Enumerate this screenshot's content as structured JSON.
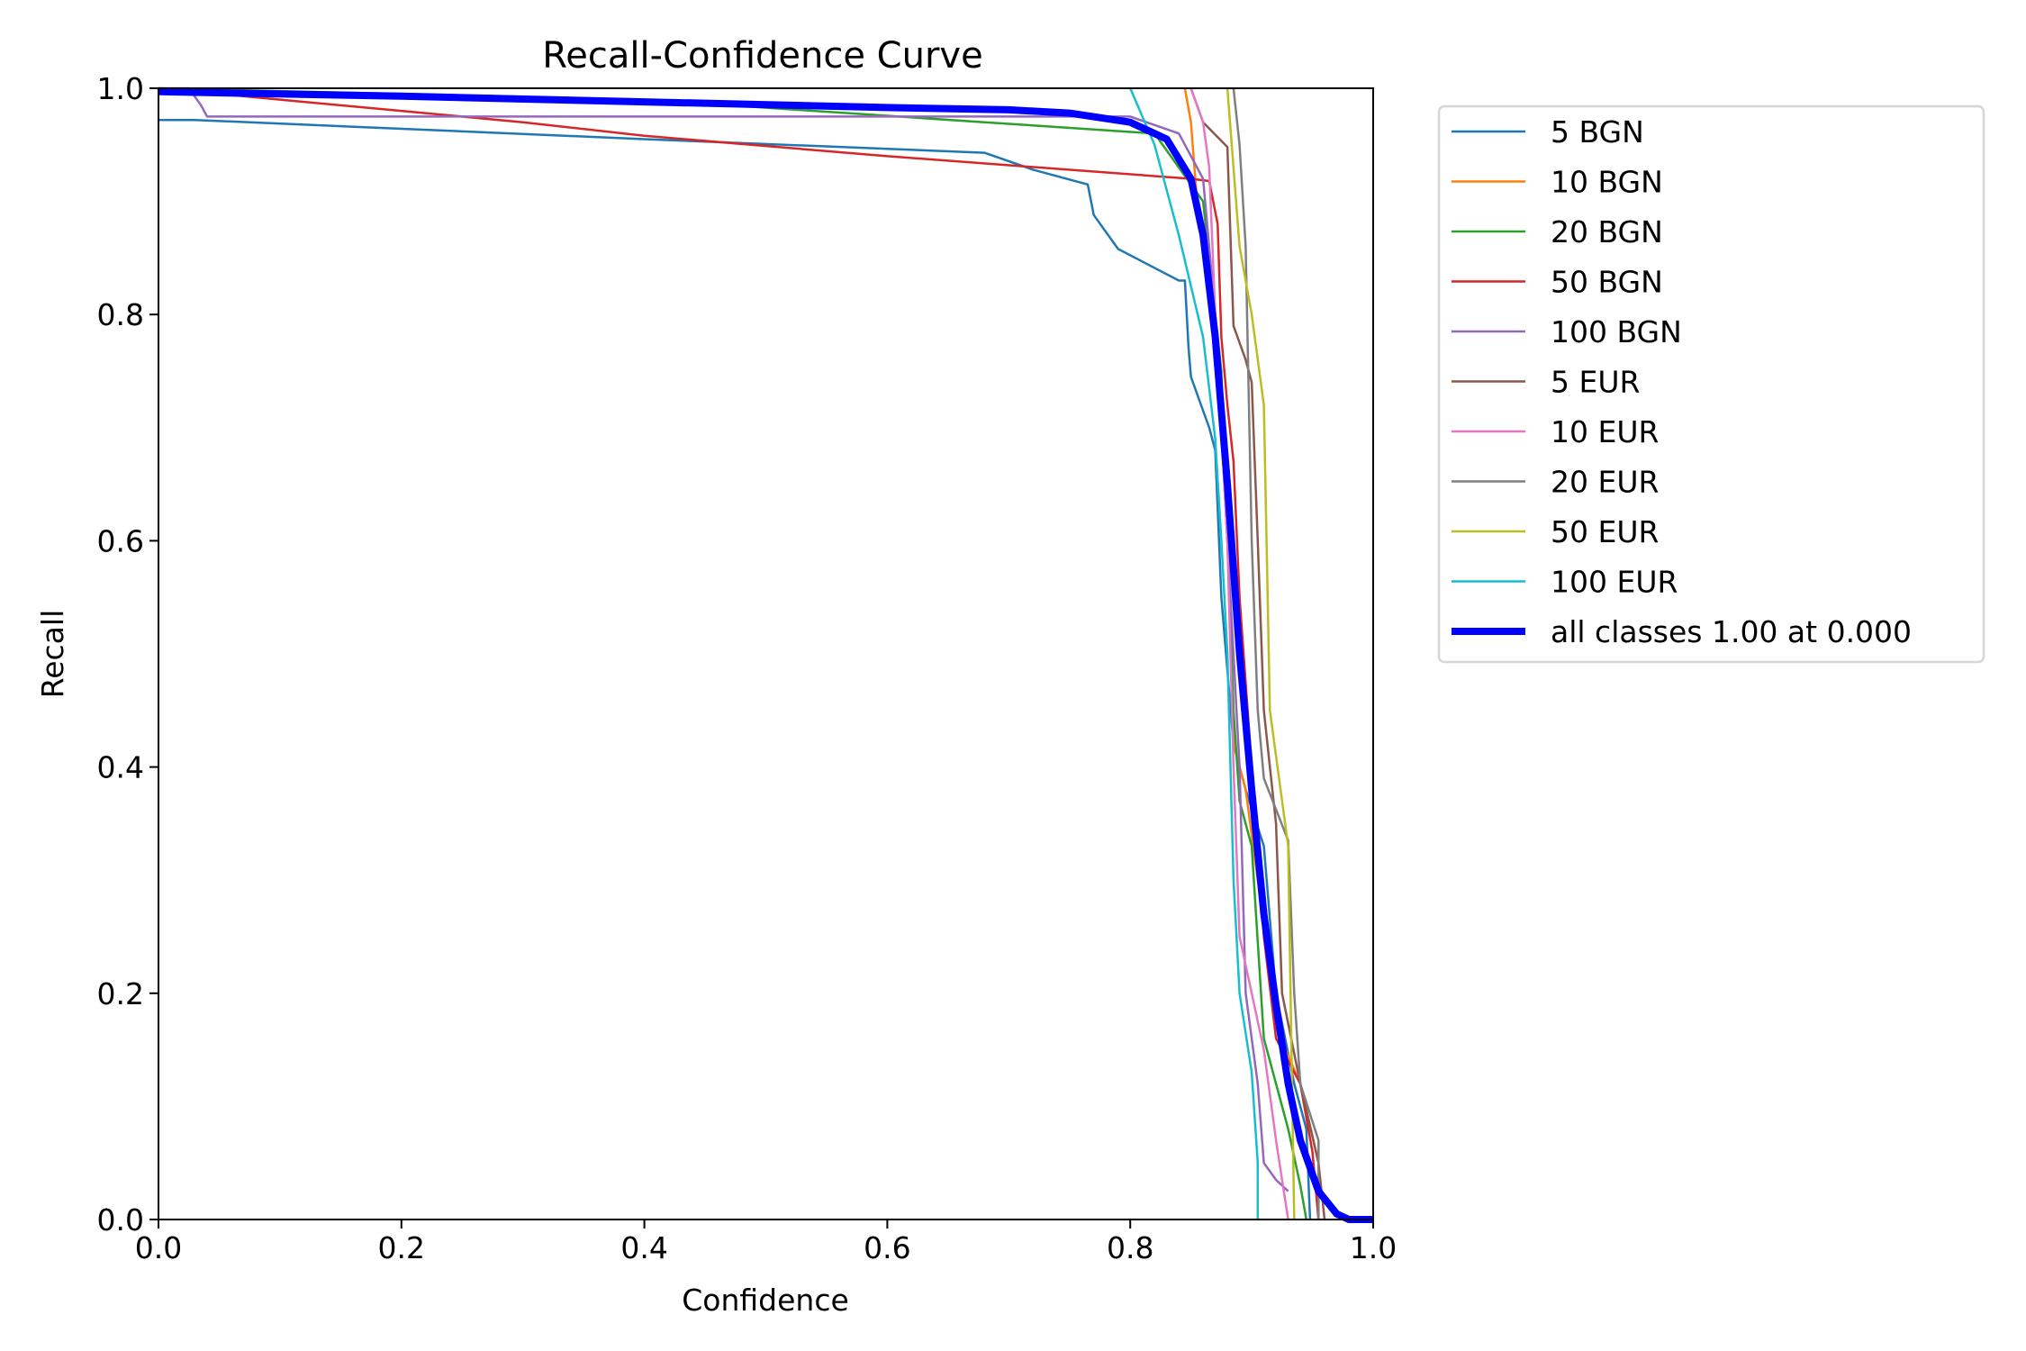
{
  "chart_data": {
    "type": "line",
    "title": "Recall-Confidence Curve",
    "xlabel": "Confidence",
    "ylabel": "Recall",
    "xlim": [
      0,
      1
    ],
    "ylim": [
      0,
      1
    ],
    "xticks": [
      "0.0",
      "0.2",
      "0.4",
      "0.6",
      "0.8",
      "1.0"
    ],
    "yticks": [
      "0.0",
      "0.2",
      "0.4",
      "0.6",
      "0.8",
      "1.0"
    ],
    "grid": false,
    "legend_placement": "outside-right-top",
    "series": [
      {
        "name": "5 BGN",
        "color": "#1f77b4",
        "points": [
          [
            0,
            0.972
          ],
          [
            0.03,
            0.972
          ],
          [
            0.4,
            0.955
          ],
          [
            0.68,
            0.943
          ],
          [
            0.72,
            0.928
          ],
          [
            0.765,
            0.915
          ],
          [
            0.77,
            0.888
          ],
          [
            0.79,
            0.858
          ],
          [
            0.84,
            0.83
          ],
          [
            0.845,
            0.83
          ],
          [
            0.848,
            0.77
          ],
          [
            0.85,
            0.745
          ],
          [
            0.86,
            0.715
          ],
          [
            0.865,
            0.7
          ],
          [
            0.87,
            0.68
          ],
          [
            0.875,
            0.55
          ],
          [
            0.885,
            0.42
          ],
          [
            0.895,
            0.38
          ],
          [
            0.91,
            0.33
          ],
          [
            0.92,
            0.2
          ],
          [
            0.935,
            0.12
          ],
          [
            0.945,
            0.08
          ],
          [
            0.948,
            0.0
          ]
        ]
      },
      {
        "name": "10 BGN",
        "color": "#ff7f0e",
        "points": [
          [
            0.845,
            1.0
          ],
          [
            0.85,
            0.97
          ],
          [
            0.855,
            0.9
          ],
          [
            0.87,
            0.8
          ],
          [
            0.88,
            0.6
          ],
          [
            0.885,
            0.42
          ],
          [
            0.895,
            0.38
          ],
          [
            0.905,
            0.3
          ],
          [
            0.92,
            0.17
          ],
          [
            0.94,
            0.12
          ],
          [
            0.955,
            0.05
          ],
          [
            0.955,
            0.0
          ]
        ]
      },
      {
        "name": "20 BGN",
        "color": "#2ca02c",
        "points": [
          [
            0,
            1.0
          ],
          [
            0.4,
            0.99
          ],
          [
            0.68,
            0.97
          ],
          [
            0.82,
            0.96
          ],
          [
            0.86,
            0.9
          ],
          [
            0.875,
            0.75
          ],
          [
            0.885,
            0.45
          ],
          [
            0.89,
            0.37
          ],
          [
            0.9,
            0.33
          ],
          [
            0.91,
            0.16
          ],
          [
            0.93,
            0.08
          ],
          [
            0.94,
            0.03
          ],
          [
            0.945,
            0.0
          ]
        ]
      },
      {
        "name": "50 BGN",
        "color": "#d62728",
        "points": [
          [
            0,
            1.0
          ],
          [
            0.1,
            0.99
          ],
          [
            0.3,
            0.97
          ],
          [
            0.4,
            0.958
          ],
          [
            0.6,
            0.94
          ],
          [
            0.85,
            0.92
          ],
          [
            0.865,
            0.918
          ],
          [
            0.872,
            0.88
          ],
          [
            0.875,
            0.78
          ],
          [
            0.88,
            0.72
          ],
          [
            0.885,
            0.67
          ],
          [
            0.89,
            0.55
          ],
          [
            0.9,
            0.4
          ],
          [
            0.91,
            0.25
          ],
          [
            0.92,
            0.16
          ],
          [
            0.94,
            0.12
          ],
          [
            0.95,
            0.06
          ],
          [
            0.955,
            0.0
          ]
        ]
      },
      {
        "name": "100 BGN",
        "color": "#9467bd",
        "points": [
          [
            0,
            1.0
          ],
          [
            0.025,
            1.0
          ],
          [
            0.035,
            0.985
          ],
          [
            0.04,
            0.975
          ],
          [
            0.8,
            0.975
          ],
          [
            0.84,
            0.96
          ],
          [
            0.86,
            0.92
          ],
          [
            0.87,
            0.8
          ],
          [
            0.88,
            0.6
          ],
          [
            0.89,
            0.4
          ],
          [
            0.895,
            0.2
          ],
          [
            0.905,
            0.12
          ],
          [
            0.91,
            0.05
          ],
          [
            0.92,
            0.035
          ],
          [
            0.93,
            0.025
          ]
        ]
      },
      {
        "name": "5 EUR",
        "color": "#8c564b",
        "points": [
          [
            0.85,
            1.0
          ],
          [
            0.86,
            0.97
          ],
          [
            0.88,
            0.948
          ],
          [
            0.885,
            0.79
          ],
          [
            0.895,
            0.76
          ],
          [
            0.9,
            0.74
          ],
          [
            0.905,
            0.6
          ],
          [
            0.91,
            0.45
          ],
          [
            0.915,
            0.4
          ],
          [
            0.92,
            0.35
          ],
          [
            0.925,
            0.2
          ],
          [
            0.94,
            0.12
          ],
          [
            0.955,
            0.05
          ],
          [
            0.96,
            0.0
          ]
        ]
      },
      {
        "name": "10 EUR",
        "color": "#e377c2",
        "points": [
          [
            0.85,
            1.0
          ],
          [
            0.86,
            0.97
          ],
          [
            0.865,
            0.93
          ],
          [
            0.87,
            0.8
          ],
          [
            0.88,
            0.6
          ],
          [
            0.885,
            0.4
          ],
          [
            0.89,
            0.25
          ],
          [
            0.9,
            0.2
          ],
          [
            0.91,
            0.15
          ],
          [
            0.92,
            0.07
          ],
          [
            0.93,
            0.0
          ]
        ]
      },
      {
        "name": "20 EUR",
        "color": "#7f7f7f",
        "points": [
          [
            0.885,
            1.0
          ],
          [
            0.89,
            0.95
          ],
          [
            0.895,
            0.86
          ],
          [
            0.9,
            0.6
          ],
          [
            0.905,
            0.45
          ],
          [
            0.91,
            0.39
          ],
          [
            0.93,
            0.335
          ],
          [
            0.935,
            0.2
          ],
          [
            0.94,
            0.12
          ],
          [
            0.955,
            0.07
          ],
          [
            0.955,
            0.0
          ]
        ]
      },
      {
        "name": "50 EUR",
        "color": "#bcbd22",
        "points": [
          [
            0.88,
            1.0
          ],
          [
            0.89,
            0.86
          ],
          [
            0.9,
            0.8
          ],
          [
            0.91,
            0.72
          ],
          [
            0.915,
            0.45
          ],
          [
            0.93,
            0.33
          ],
          [
            0.935,
            0.0
          ]
        ]
      },
      {
        "name": "100 EUR",
        "color": "#17becf",
        "points": [
          [
            0.8,
            1.0
          ],
          [
            0.82,
            0.95
          ],
          [
            0.84,
            0.87
          ],
          [
            0.86,
            0.78
          ],
          [
            0.87,
            0.69
          ],
          [
            0.875,
            0.6
          ],
          [
            0.88,
            0.5
          ],
          [
            0.885,
            0.3
          ],
          [
            0.89,
            0.2
          ],
          [
            0.9,
            0.13
          ],
          [
            0.905,
            0.05
          ],
          [
            0.905,
            0.0
          ]
        ]
      },
      {
        "name": "all classes 1.00 at 0.000",
        "color": "#0000ff",
        "thick": true,
        "points": [
          [
            0,
            0.997
          ],
          [
            0.2,
            0.993
          ],
          [
            0.4,
            0.988
          ],
          [
            0.6,
            0.983
          ],
          [
            0.7,
            0.981
          ],
          [
            0.75,
            0.978
          ],
          [
            0.8,
            0.97
          ],
          [
            0.83,
            0.955
          ],
          [
            0.85,
            0.92
          ],
          [
            0.86,
            0.87
          ],
          [
            0.87,
            0.78
          ],
          [
            0.88,
            0.65
          ],
          [
            0.89,
            0.5
          ],
          [
            0.9,
            0.38
          ],
          [
            0.91,
            0.27
          ],
          [
            0.92,
            0.19
          ],
          [
            0.93,
            0.12
          ],
          [
            0.94,
            0.07
          ],
          [
            0.955,
            0.025
          ],
          [
            0.97,
            0.005
          ],
          [
            0.98,
            0.0
          ],
          [
            1.0,
            0.0
          ]
        ]
      }
    ]
  }
}
